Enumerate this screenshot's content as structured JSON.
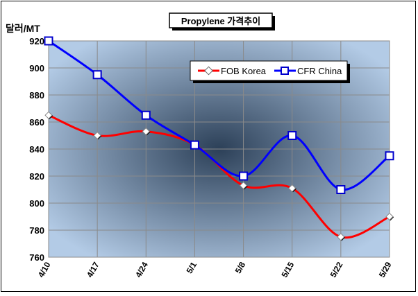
{
  "chart_data": {
    "type": "line",
    "title": "Propylene 가격추이",
    "ylabel": "달러/MT",
    "xlabel": "",
    "categories": [
      "4/10",
      "4/17",
      "4/24",
      "5/1",
      "5/8",
      "5/15",
      "5/22",
      "5/29"
    ],
    "yticks": [
      "760",
      "780",
      "800",
      "820",
      "840",
      "860",
      "880",
      "900",
      "920"
    ],
    "ylim": [
      760,
      920
    ],
    "grid": true,
    "legend_position": "top-right",
    "series": [
      {
        "name": "FOB Korea",
        "color": "#ff0000",
        "marker": "diamond",
        "values": [
          865,
          850,
          853,
          843,
          813,
          811,
          775,
          790
        ]
      },
      {
        "name": "CFR China",
        "color": "#0000ff",
        "marker": "square",
        "values": [
          920,
          895,
          865,
          843,
          820,
          850,
          810,
          835
        ]
      }
    ],
    "colors": {
      "plot_center": "#2c4058",
      "plot_edge": "#b3cbe6",
      "grid": "#8a8a8a"
    }
  }
}
